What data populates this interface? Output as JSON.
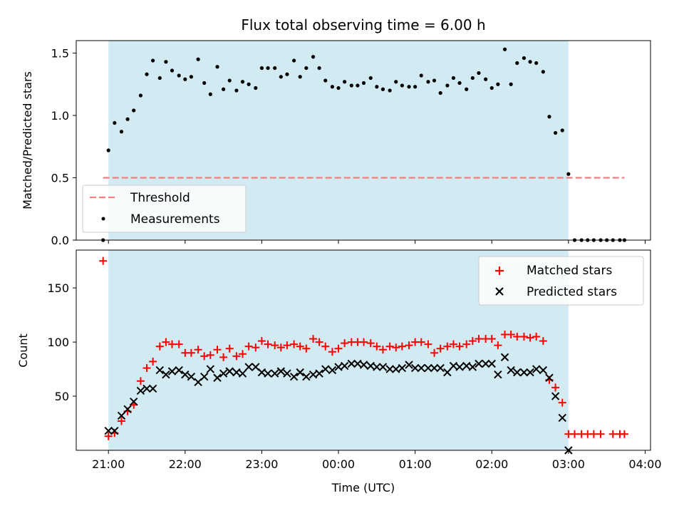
{
  "chart_data": [
    {
      "type": "scatter",
      "title": "Flux total observing time = 6.00 h",
      "xlabel": "",
      "ylabel": "Matched/Predicted stars",
      "x_unit": "hours after 21:00 UTC",
      "xlim": [
        -0.42,
        7.07
      ],
      "ylim": [
        0,
        1.6
      ],
      "yticks": [
        0.0,
        0.5,
        1.0,
        1.5
      ],
      "ytick_labels": [
        "0.0",
        "0.5",
        "1.0",
        "1.5"
      ],
      "shaded_interval": {
        "start": "21:00",
        "end": "03:00",
        "color": "#add8e6"
      },
      "legend": {
        "position": "lower left",
        "entries": [
          "Threshold",
          "Measurements"
        ]
      },
      "series": [
        {
          "name": "Threshold",
          "style": "dashed-line",
          "color": "#f08080",
          "x": [
            -0.07,
            6.73
          ],
          "y": [
            0.5,
            0.5
          ]
        },
        {
          "name": "Measurements",
          "style": "dots",
          "color": "#000000",
          "x": [
            -0.07,
            0.0,
            0.08,
            0.17,
            0.25,
            0.33,
            0.42,
            0.5,
            0.58,
            0.67,
            0.75,
            0.83,
            0.92,
            1.0,
            1.08,
            1.17,
            1.25,
            1.33,
            1.42,
            1.5,
            1.58,
            1.67,
            1.75,
            1.83,
            1.92,
            2.0,
            2.08,
            2.17,
            2.25,
            2.33,
            2.42,
            2.5,
            2.58,
            2.67,
            2.75,
            2.83,
            2.92,
            3.0,
            3.08,
            3.17,
            3.25,
            3.33,
            3.42,
            3.5,
            3.58,
            3.67,
            3.75,
            3.83,
            3.92,
            4.0,
            4.08,
            4.17,
            4.25,
            4.33,
            4.42,
            4.5,
            4.58,
            4.67,
            4.75,
            4.83,
            4.92,
            5.0,
            5.08,
            5.17,
            5.25,
            5.33,
            5.42,
            5.5,
            5.58,
            5.67,
            5.75,
            5.83,
            5.92,
            6.0,
            6.08,
            6.17,
            6.25,
            6.33,
            6.42,
            6.5,
            6.58,
            6.67,
            6.73
          ],
          "y": [
            0.0,
            0.72,
            0.94,
            0.87,
            0.97,
            1.04,
            1.16,
            1.33,
            1.44,
            1.3,
            1.43,
            1.36,
            1.32,
            1.29,
            1.31,
            1.45,
            1.26,
            1.17,
            1.39,
            1.21,
            1.28,
            1.2,
            1.27,
            1.25,
            1.22,
            1.38,
            1.38,
            1.38,
            1.31,
            1.33,
            1.44,
            1.31,
            1.38,
            1.47,
            1.38,
            1.28,
            1.23,
            1.22,
            1.27,
            1.24,
            1.24,
            1.26,
            1.3,
            1.23,
            1.21,
            1.2,
            1.27,
            1.24,
            1.23,
            1.23,
            1.32,
            1.27,
            1.28,
            1.18,
            1.24,
            1.3,
            1.26,
            1.21,
            1.3,
            1.34,
            1.29,
            1.22,
            1.25,
            1.53,
            1.25,
            1.42,
            1.46,
            1.43,
            1.42,
            1.35,
            0.99,
            0.86,
            0.88,
            0.53,
            0.0,
            0.0,
            0.0,
            0.0,
            0.0,
            0.0,
            0.0,
            0.0,
            0.0
          ]
        }
      ]
    },
    {
      "type": "scatter",
      "title": "",
      "xlabel": "Time (UTC)",
      "ylabel": "Count",
      "x_unit": "hours after 21:00 UTC",
      "xlim": [
        -0.42,
        7.07
      ],
      "ylim": [
        0,
        185
      ],
      "xticks": [
        0,
        1,
        2,
        3,
        4,
        5,
        6,
        7
      ],
      "xtick_labels": [
        "21:00",
        "22:00",
        "23:00",
        "00:00",
        "01:00",
        "02:00",
        "03:00",
        "04:00"
      ],
      "yticks": [
        50,
        100,
        150
      ],
      "ytick_labels": [
        "50",
        "100",
        "150"
      ],
      "shaded_interval": {
        "start": "21:00",
        "end": "03:00",
        "color": "#add8e6"
      },
      "legend": {
        "position": "upper right",
        "entries": [
          "Matched stars",
          "Predicted stars"
        ]
      },
      "series": [
        {
          "name": "Matched stars",
          "marker": "+",
          "color": "#ff0000",
          "x": [
            -0.07,
            0.0,
            0.08,
            0.17,
            0.25,
            0.33,
            0.42,
            0.5,
            0.58,
            0.67,
            0.75,
            0.83,
            0.92,
            1.0,
            1.08,
            1.17,
            1.25,
            1.33,
            1.42,
            1.5,
            1.58,
            1.67,
            1.75,
            1.83,
            1.92,
            2.0,
            2.08,
            2.17,
            2.25,
            2.33,
            2.42,
            2.5,
            2.58,
            2.67,
            2.75,
            2.83,
            2.92,
            3.0,
            3.08,
            3.17,
            3.25,
            3.33,
            3.42,
            3.5,
            3.58,
            3.67,
            3.75,
            3.83,
            3.92,
            4.0,
            4.08,
            4.17,
            4.25,
            4.33,
            4.42,
            4.5,
            4.58,
            4.67,
            4.75,
            4.83,
            4.92,
            5.0,
            5.08,
            5.17,
            5.25,
            5.33,
            5.42,
            5.5,
            5.58,
            5.67,
            5.75,
            5.83,
            5.92,
            6.0,
            6.08,
            6.17,
            6.25,
            6.33,
            6.42,
            6.58,
            6.67,
            6.73
          ],
          "y": [
            175,
            13,
            16,
            27,
            36,
            42,
            64,
            76,
            82,
            96,
            100,
            98,
            98,
            90,
            90,
            93,
            87,
            88,
            93,
            86,
            94,
            87,
            89,
            96,
            95,
            101,
            98,
            97,
            95,
            97,
            98,
            96,
            94,
            103,
            100,
            96,
            91,
            94,
            99,
            100,
            100,
            100,
            99,
            96,
            93,
            96,
            95,
            96,
            97,
            100,
            100,
            98,
            90,
            94,
            96,
            98,
            96,
            98,
            101,
            103,
            103,
            103,
            97,
            107,
            107,
            105,
            105,
            104,
            105,
            101,
            65,
            58,
            44,
            15,
            15,
            15,
            15,
            15,
            15,
            15,
            15,
            15
          ]
        },
        {
          "name": "Predicted stars",
          "marker": "x",
          "color": "#000000",
          "x": [
            0.0,
            0.08,
            0.17,
            0.25,
            0.33,
            0.42,
            0.5,
            0.58,
            0.67,
            0.75,
            0.83,
            0.92,
            1.0,
            1.08,
            1.17,
            1.25,
            1.33,
            1.42,
            1.5,
            1.58,
            1.67,
            1.75,
            1.83,
            1.92,
            2.0,
            2.08,
            2.17,
            2.25,
            2.33,
            2.42,
            2.5,
            2.58,
            2.67,
            2.75,
            2.83,
            2.92,
            3.0,
            3.08,
            3.17,
            3.25,
            3.33,
            3.42,
            3.5,
            3.58,
            3.67,
            3.75,
            3.83,
            3.92,
            4.0,
            4.08,
            4.17,
            4.25,
            4.33,
            4.42,
            4.5,
            4.58,
            4.67,
            4.75,
            4.83,
            4.92,
            5.0,
            5.08,
            5.17,
            5.25,
            5.33,
            5.42,
            5.5,
            5.58,
            5.67,
            5.75,
            5.83,
            5.92,
            6.0
          ],
          "y": [
            18,
            18,
            32,
            38,
            45,
            55,
            57,
            57,
            74,
            70,
            73,
            74,
            70,
            68,
            63,
            68,
            75,
            67,
            71,
            73,
            72,
            71,
            77,
            77,
            72,
            71,
            71,
            73,
            71,
            68,
            72,
            68,
            70,
            71,
            75,
            74,
            77,
            78,
            80,
            80,
            79,
            78,
            77,
            77,
            75,
            75,
            76,
            79,
            76,
            76,
            76,
            76,
            76,
            72,
            78,
            77,
            78,
            77,
            80,
            80,
            80,
            70,
            86,
            74,
            72,
            72,
            72,
            75,
            74,
            67,
            50,
            30,
            0
          ]
        }
      ]
    }
  ]
}
